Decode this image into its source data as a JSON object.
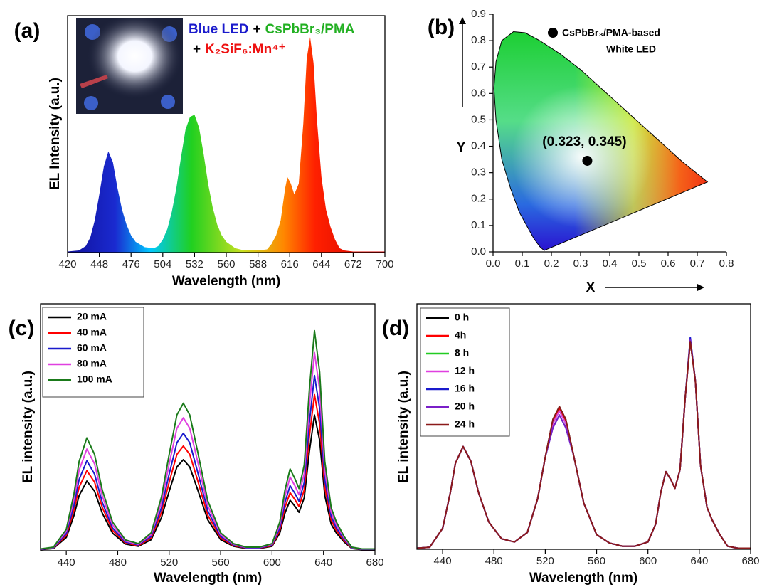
{
  "chart_data": [
    {
      "type": "area",
      "label": "(a)",
      "xlabel": "Wavelength (nm)",
      "ylabel": "EL Intensity (a.u.)",
      "annotation_lines": [
        [
          {
            "text": "Blue LED",
            "color": "#1a1acc"
          },
          {
            "text": "+",
            "color": "#000000"
          },
          {
            "text": "CsPbBr₃/PMA",
            "color": "#22b022"
          }
        ],
        [
          {
            "text": "+",
            "color": "#000000"
          },
          {
            "text": "K₂SiF₆:Mn⁴⁺",
            "color": "#ee1111"
          }
        ]
      ],
      "x": [
        420,
        430,
        436,
        440,
        444,
        448,
        452,
        456,
        460,
        464,
        468,
        472,
        476,
        480,
        488,
        496,
        500,
        504,
        508,
        512,
        516,
        520,
        524,
        528,
        532,
        536,
        540,
        544,
        548,
        552,
        556,
        560,
        568,
        576,
        588,
        596,
        600,
        604,
        608,
        612,
        614,
        617,
        620,
        624,
        628,
        631,
        634,
        637,
        640,
        644,
        648,
        652,
        656,
        660,
        664,
        672,
        700
      ],
      "values": [
        0.005,
        0.01,
        0.03,
        0.07,
        0.15,
        0.27,
        0.4,
        0.47,
        0.42,
        0.3,
        0.2,
        0.13,
        0.08,
        0.05,
        0.025,
        0.02,
        0.03,
        0.06,
        0.11,
        0.19,
        0.3,
        0.44,
        0.57,
        0.63,
        0.64,
        0.58,
        0.46,
        0.32,
        0.21,
        0.13,
        0.08,
        0.05,
        0.02,
        0.01,
        0.01,
        0.015,
        0.04,
        0.08,
        0.15,
        0.3,
        0.35,
        0.32,
        0.27,
        0.32,
        0.6,
        0.9,
        1.0,
        0.88,
        0.62,
        0.35,
        0.2,
        0.12,
        0.06,
        0.02,
        0.01,
        0.005,
        0.005
      ],
      "xlim": [
        420,
        700
      ],
      "ylim": [
        0,
        1.1
      ],
      "xticks": [
        420,
        448,
        476,
        504,
        532,
        560,
        588,
        616,
        644,
        672,
        700
      ]
    },
    {
      "type": "scatter",
      "label": "(b)",
      "xlabel": "X",
      "ylabel": "Y",
      "legend_lines": [
        "CsPbBr₃/PMA-based",
        "White LED"
      ],
      "x": [
        0.323
      ],
      "y": [
        0.345
      ],
      "point_label": "(0.323, 0.345)",
      "locus": {
        "x": [
          0.175,
          0.17,
          0.16,
          0.14,
          0.12,
          0.09,
          0.06,
          0.03,
          0.01,
          0.003,
          0.01,
          0.03,
          0.07,
          0.11,
          0.16,
          0.23,
          0.3,
          0.37,
          0.44,
          0.51,
          0.58,
          0.65,
          0.735
        ],
        "y": [
          0.005,
          0.01,
          0.02,
          0.05,
          0.09,
          0.15,
          0.24,
          0.35,
          0.5,
          0.62,
          0.72,
          0.8,
          0.834,
          0.83,
          0.8,
          0.75,
          0.69,
          0.62,
          0.55,
          0.48,
          0.41,
          0.34,
          0.265
        ]
      },
      "xlim": [
        0,
        0.8
      ],
      "ylim": [
        0,
        0.9
      ],
      "xticks": [
        {
          "value": 0,
          "label": "0.0"
        },
        0.1,
        0.2,
        0.3,
        0.4,
        0.5,
        0.6,
        0.7,
        0.8
      ],
      "yticks": [
        {
          "value": 0,
          "label": "0.0"
        },
        0.1,
        0.2,
        0.3,
        0.4,
        0.5,
        0.6,
        0.7,
        0.8,
        0.9
      ]
    },
    {
      "type": "line",
      "label": "(c)",
      "xlabel": "Wavelength (nm)",
      "ylabel": "EL intensity (a.u.)",
      "x": [
        420,
        430,
        440,
        446,
        450,
        456,
        462,
        468,
        476,
        486,
        496,
        506,
        514,
        520,
        526,
        531,
        536,
        542,
        550,
        560,
        570,
        580,
        590,
        600,
        606,
        610,
        614,
        618,
        621,
        625,
        629,
        633,
        637,
        641,
        646,
        650,
        656,
        662,
        670,
        680
      ],
      "xlim": [
        420,
        680
      ],
      "ylim": [
        0,
        1.12
      ],
      "xticks": [
        440,
        480,
        520,
        560,
        600,
        640,
        680
      ],
      "series": [
        {
          "name": "20 mA",
          "color": "#000000",
          "values": [
            0.005,
            0.01,
            0.06,
            0.16,
            0.25,
            0.316,
            0.27,
            0.17,
            0.08,
            0.03,
            0.02,
            0.05,
            0.15,
            0.27,
            0.38,
            0.413,
            0.38,
            0.28,
            0.14,
            0.05,
            0.02,
            0.01,
            0.01,
            0.02,
            0.08,
            0.17,
            0.229,
            0.2,
            0.174,
            0.24,
            0.45,
            0.616,
            0.5,
            0.25,
            0.12,
            0.08,
            0.04,
            0.01,
            0.005,
            0.005
          ]
        },
        {
          "name": "40 mA",
          "color": "#ff0000",
          "values": [
            0.006,
            0.012,
            0.069,
            0.184,
            0.288,
            0.363,
            0.311,
            0.196,
            0.092,
            0.035,
            0.023,
            0.058,
            0.173,
            0.311,
            0.437,
            0.475,
            0.437,
            0.322,
            0.161,
            0.058,
            0.023,
            0.012,
            0.012,
            0.023,
            0.092,
            0.196,
            0.263,
            0.23,
            0.2,
            0.276,
            0.518,
            0.708,
            0.575,
            0.288,
            0.138,
            0.092,
            0.046,
            0.012,
            0.006,
            0.006
          ]
        },
        {
          "name": "60 mA",
          "color": "#1a1acc",
          "values": [
            0.006,
            0.013,
            0.077,
            0.206,
            0.323,
            0.408,
            0.348,
            0.219,
            0.103,
            0.039,
            0.026,
            0.065,
            0.194,
            0.348,
            0.49,
            0.533,
            0.49,
            0.361,
            0.181,
            0.065,
            0.026,
            0.013,
            0.013,
            0.026,
            0.103,
            0.219,
            0.295,
            0.258,
            0.224,
            0.31,
            0.581,
            0.795,
            0.645,
            0.323,
            0.155,
            0.103,
            0.052,
            0.013,
            0.006,
            0.006
          ]
        },
        {
          "name": "80 mA",
          "color": "#e040e0",
          "values": [
            0.007,
            0.015,
            0.088,
            0.234,
            0.365,
            0.461,
            0.394,
            0.248,
            0.117,
            0.044,
            0.029,
            0.073,
            0.219,
            0.394,
            0.555,
            0.603,
            0.555,
            0.409,
            0.204,
            0.073,
            0.029,
            0.015,
            0.015,
            0.029,
            0.117,
            0.248,
            0.334,
            0.292,
            0.254,
            0.35,
            0.657,
            0.899,
            0.73,
            0.365,
            0.175,
            0.117,
            0.058,
            0.015,
            0.007,
            0.007
          ]
        },
        {
          "name": "100 mA",
          "color": "#1a7a1a",
          "values": [
            0.008,
            0.016,
            0.097,
            0.259,
            0.405,
            0.512,
            0.437,
            0.275,
            0.13,
            0.049,
            0.032,
            0.081,
            0.243,
            0.437,
            0.616,
            0.669,
            0.616,
            0.454,
            0.227,
            0.081,
            0.032,
            0.016,
            0.016,
            0.032,
            0.13,
            0.275,
            0.371,
            0.324,
            0.282,
            0.389,
            0.729,
            0.998,
            0.81,
            0.405,
            0.194,
            0.13,
            0.065,
            0.016,
            0.008,
            0.008
          ]
        }
      ]
    },
    {
      "type": "line",
      "label": "(d)",
      "xlabel": "Wavelength (nm)",
      "ylabel": "EL intensity (a.u.)",
      "x": [
        420,
        430,
        440,
        446,
        450,
        456,
        462,
        468,
        476,
        486,
        496,
        506,
        514,
        520,
        526,
        531,
        536,
        542,
        550,
        560,
        570,
        580,
        590,
        600,
        606,
        610,
        614,
        618,
        621,
        625,
        629,
        633,
        637,
        641,
        646,
        650,
        656,
        662,
        670,
        680
      ],
      "xlim": [
        420,
        680
      ],
      "ylim": [
        0,
        1.17
      ],
      "xticks": [
        440,
        480,
        520,
        560,
        600,
        640,
        680
      ],
      "series": [
        {
          "name": "0 h",
          "color": "#000000",
          "values": [
            0.005,
            0.01,
            0.1,
            0.27,
            0.41,
            0.49,
            0.42,
            0.27,
            0.13,
            0.05,
            0.035,
            0.08,
            0.24,
            0.44,
            0.62,
            0.68,
            0.62,
            0.45,
            0.22,
            0.07,
            0.03,
            0.015,
            0.015,
            0.035,
            0.12,
            0.27,
            0.37,
            0.33,
            0.29,
            0.38,
            0.72,
            1.0,
            0.8,
            0.4,
            0.2,
            0.14,
            0.07,
            0.015,
            0.005,
            0.005
          ]
        },
        {
          "name": "4h",
          "color": "#ff0000",
          "values": [
            0.005,
            0.01,
            0.1,
            0.27,
            0.41,
            0.49,
            0.42,
            0.27,
            0.13,
            0.05,
            0.035,
            0.08,
            0.24,
            0.44,
            0.61,
            0.67,
            0.61,
            0.45,
            0.22,
            0.07,
            0.03,
            0.015,
            0.015,
            0.035,
            0.12,
            0.27,
            0.37,
            0.33,
            0.29,
            0.38,
            0.72,
            0.99,
            0.8,
            0.4,
            0.2,
            0.14,
            0.07,
            0.015,
            0.005,
            0.005
          ]
        },
        {
          "name": "8 h",
          "color": "#22cc22",
          "values": [
            0.005,
            0.01,
            0.1,
            0.27,
            0.41,
            0.49,
            0.42,
            0.27,
            0.13,
            0.05,
            0.035,
            0.08,
            0.24,
            0.44,
            0.6,
            0.66,
            0.6,
            0.45,
            0.22,
            0.07,
            0.03,
            0.015,
            0.015,
            0.035,
            0.12,
            0.27,
            0.37,
            0.33,
            0.29,
            0.38,
            0.72,
            0.99,
            0.8,
            0.4,
            0.2,
            0.14,
            0.07,
            0.015,
            0.005,
            0.005
          ]
        },
        {
          "name": "12 h",
          "color": "#e040e0",
          "values": [
            0.005,
            0.01,
            0.1,
            0.27,
            0.41,
            0.49,
            0.42,
            0.27,
            0.13,
            0.05,
            0.035,
            0.08,
            0.24,
            0.44,
            0.6,
            0.66,
            0.6,
            0.45,
            0.22,
            0.07,
            0.03,
            0.015,
            0.015,
            0.035,
            0.12,
            0.27,
            0.37,
            0.33,
            0.29,
            0.38,
            0.72,
            0.99,
            0.8,
            0.4,
            0.2,
            0.14,
            0.07,
            0.015,
            0.005,
            0.005
          ]
        },
        {
          "name": "16 h",
          "color": "#1a1acc",
          "values": [
            0.005,
            0.01,
            0.1,
            0.27,
            0.41,
            0.49,
            0.42,
            0.27,
            0.13,
            0.05,
            0.035,
            0.08,
            0.24,
            0.44,
            0.58,
            0.64,
            0.58,
            0.45,
            0.22,
            0.07,
            0.03,
            0.015,
            0.015,
            0.035,
            0.12,
            0.27,
            0.37,
            0.33,
            0.29,
            0.38,
            0.72,
            1.01,
            0.8,
            0.4,
            0.2,
            0.14,
            0.07,
            0.015,
            0.005,
            0.005
          ]
        },
        {
          "name": "20 h",
          "color": "#7a1fc8",
          "values": [
            0.005,
            0.01,
            0.1,
            0.27,
            0.41,
            0.49,
            0.42,
            0.27,
            0.13,
            0.05,
            0.035,
            0.08,
            0.24,
            0.44,
            0.58,
            0.64,
            0.58,
            0.45,
            0.22,
            0.07,
            0.03,
            0.015,
            0.015,
            0.035,
            0.12,
            0.27,
            0.37,
            0.33,
            0.29,
            0.38,
            0.72,
            1.0,
            0.8,
            0.4,
            0.2,
            0.14,
            0.07,
            0.015,
            0.005,
            0.005
          ]
        },
        {
          "name": "24 h",
          "color": "#8b1a1a",
          "values": [
            0.005,
            0.01,
            0.1,
            0.27,
            0.41,
            0.49,
            0.42,
            0.27,
            0.13,
            0.05,
            0.035,
            0.08,
            0.24,
            0.44,
            0.62,
            0.68,
            0.62,
            0.45,
            0.22,
            0.07,
            0.03,
            0.015,
            0.015,
            0.035,
            0.12,
            0.27,
            0.37,
            0.33,
            0.29,
            0.38,
            0.72,
            0.99,
            0.8,
            0.4,
            0.2,
            0.14,
            0.07,
            0.015,
            0.005,
            0.005
          ]
        }
      ]
    }
  ]
}
